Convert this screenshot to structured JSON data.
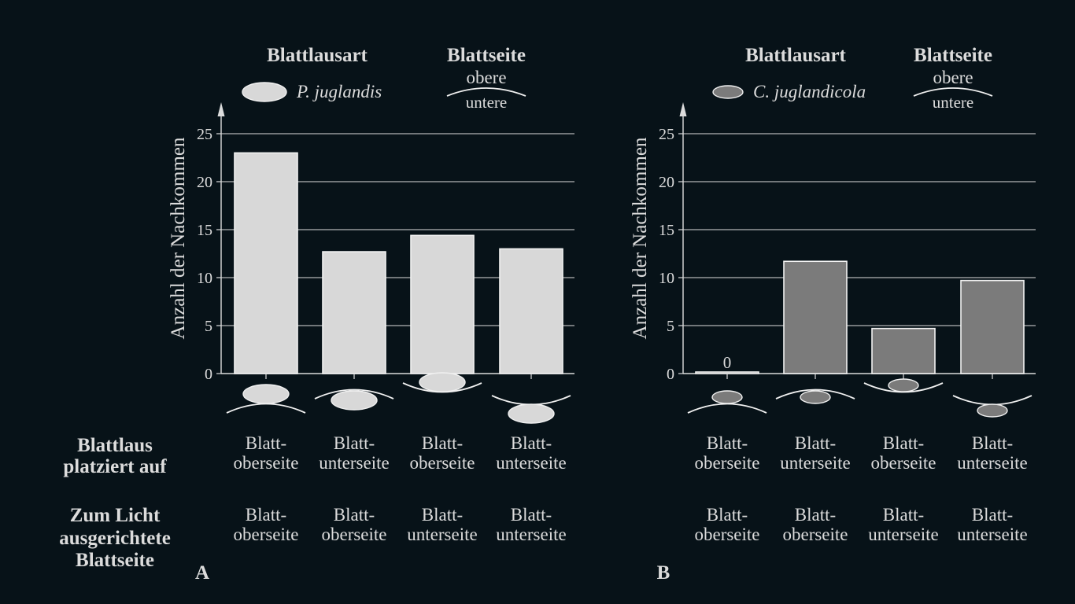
{
  "chart_data": [
    {
      "type": "bar",
      "panel_letter": "A",
      "ylabel": "Anzahl der Nachkommen",
      "ylim": [
        0,
        25
      ],
      "yticks": [
        0,
        5,
        10,
        15,
        20,
        25
      ],
      "grid": true,
      "values": [
        23,
        12.7,
        14.4,
        13
      ],
      "bar_color": "#d8d8d8",
      "data_labels": [
        "",
        "",
        "",
        ""
      ],
      "legend": {
        "species_header": "Blattlausart",
        "species_name": "P. juglandis",
        "side_header": "Blattseite",
        "side_upper": "obere",
        "side_lower": "untere"
      },
      "placed_on": [
        [
          "Blatt-",
          "oberseite"
        ],
        [
          "Blatt-",
          "unterseite"
        ],
        [
          "Blatt-",
          "oberseite"
        ],
        [
          "Blatt-",
          "unterseite"
        ]
      ],
      "light_side": [
        [
          "Blatt-",
          "oberseite"
        ],
        [
          "Blatt-",
          "oberseite"
        ],
        [
          "Blatt-",
          "unterseite"
        ],
        [
          "Blatt-",
          "unterseite"
        ]
      ]
    },
    {
      "type": "bar",
      "panel_letter": "B",
      "ylabel": "Anzahl der Nachkommen",
      "ylim": [
        0,
        25
      ],
      "yticks": [
        0,
        5,
        10,
        15,
        20,
        25
      ],
      "grid": true,
      "values": [
        0,
        11.7,
        4.7,
        9.7
      ],
      "bar_color": "#7b7b7b",
      "data_labels": [
        "0",
        "",
        "",
        ""
      ],
      "legend": {
        "species_header": "Blattlausart",
        "species_name": "C. juglandicola",
        "side_header": "Blattseite",
        "side_upper": "obere",
        "side_lower": "untere"
      },
      "placed_on": [
        [
          "Blatt-",
          "oberseite"
        ],
        [
          "Blatt-",
          "unterseite"
        ],
        [
          "Blatt-",
          "oberseite"
        ],
        [
          "Blatt-",
          "unterseite"
        ]
      ],
      "light_side": [
        [
          "Blatt-",
          "oberseite"
        ],
        [
          "Blatt-",
          "oberseite"
        ],
        [
          "Blatt-",
          "unterseite"
        ],
        [
          "Blatt-",
          "unterseite"
        ]
      ]
    }
  ],
  "row_labels": {
    "placed_on": [
      "Blattlaus",
      "platziert auf"
    ],
    "light_side": [
      "Zum Licht",
      "ausgerichtete",
      "Blattseite"
    ]
  }
}
